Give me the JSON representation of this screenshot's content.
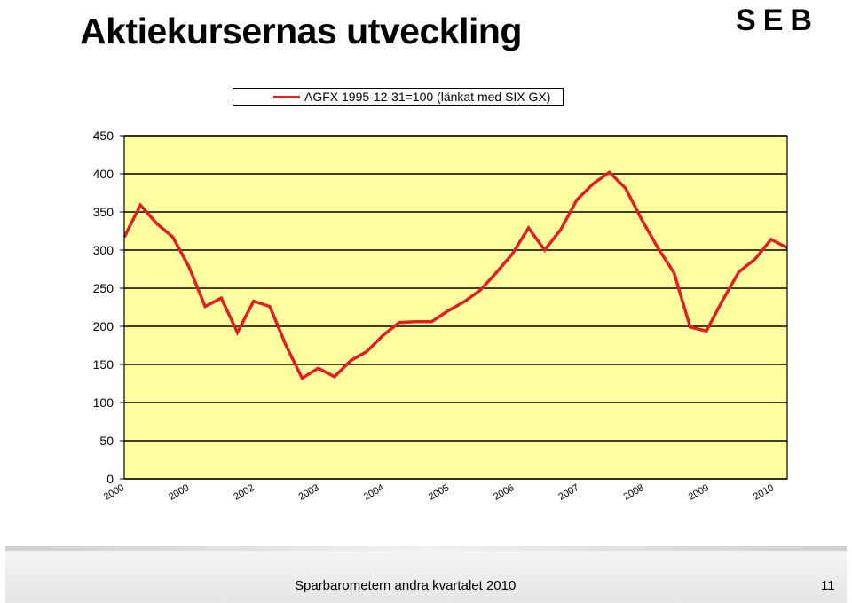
{
  "slide": {
    "title": "Aktiekursernas utveckling",
    "logo_text": "SEB",
    "footer_text": "Sparbarometern andra kvartalet 2010",
    "page_number": "11"
  },
  "colors": {
    "plot_background": "#ffffa0",
    "series_line": "#e02020",
    "grid": "#000000"
  },
  "chart_data": {
    "type": "line",
    "legend": "top",
    "grid": true,
    "ylim": [
      0,
      450
    ],
    "yticks": [
      0,
      50,
      100,
      150,
      200,
      250,
      300,
      350,
      400,
      450
    ],
    "xticks": [
      "2000",
      "2000",
      "2002",
      "2003",
      "2004",
      "2005",
      "2006",
      "2007",
      "2008",
      "2009",
      "2010"
    ],
    "series": [
      {
        "name": "AGFX 1995-12-31=100 (länkat med SIX GX)",
        "values": [
          317,
          359,
          335,
          317,
          278,
          226,
          237,
          192,
          233,
          226,
          175,
          132,
          145,
          134,
          155,
          167,
          188,
          205,
          206,
          206,
          220,
          232,
          247,
          270,
          295,
          329,
          300,
          327,
          366,
          387,
          402,
          381,
          340,
          303,
          270,
          199,
          194,
          234,
          271,
          288,
          314,
          303
        ]
      }
    ]
  }
}
